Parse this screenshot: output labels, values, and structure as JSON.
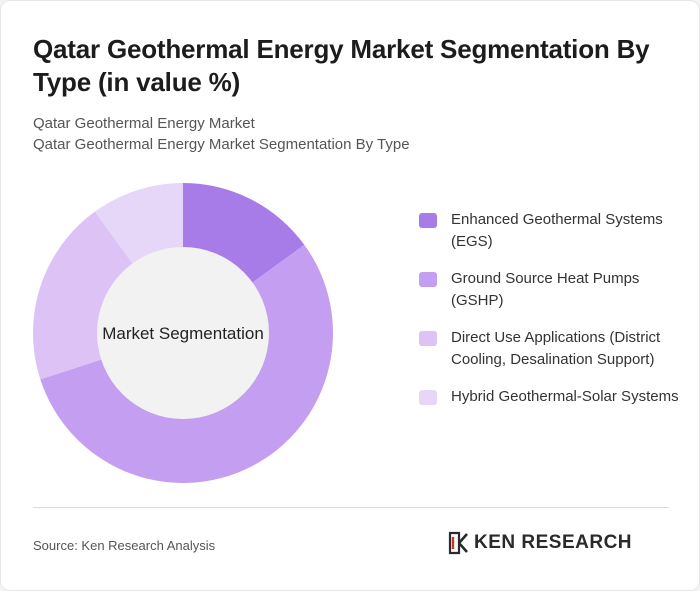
{
  "header": {
    "title": "Qatar Geothermal Energy Market Segmentation By Type (in value %)",
    "subtitle_line1": "Qatar Geothermal Energy Market",
    "subtitle_line2": "Qatar Geothermal Energy Market Segmentation By Type"
  },
  "chart_data": {
    "type": "pie",
    "variant": "donut",
    "center_label": "Market Segmentation",
    "legend_position": "right",
    "categories": [
      "Enhanced Geothermal Systems (EGS)",
      "Ground Source Heat Pumps (GSHP)",
      "Direct Use Applications (District Cooling, Desalination Support)",
      "Hybrid Geothermal-Solar Systems"
    ],
    "values": [
      15,
      55,
      20,
      10
    ],
    "colors": [
      "#a87ce8",
      "#c49ef0",
      "#dcc2f5",
      "#e6d6f7"
    ],
    "unit": "%"
  },
  "footer": {
    "source": "Source: Ken Research Analysis",
    "logo_text": "KEN RESEARCH"
  }
}
